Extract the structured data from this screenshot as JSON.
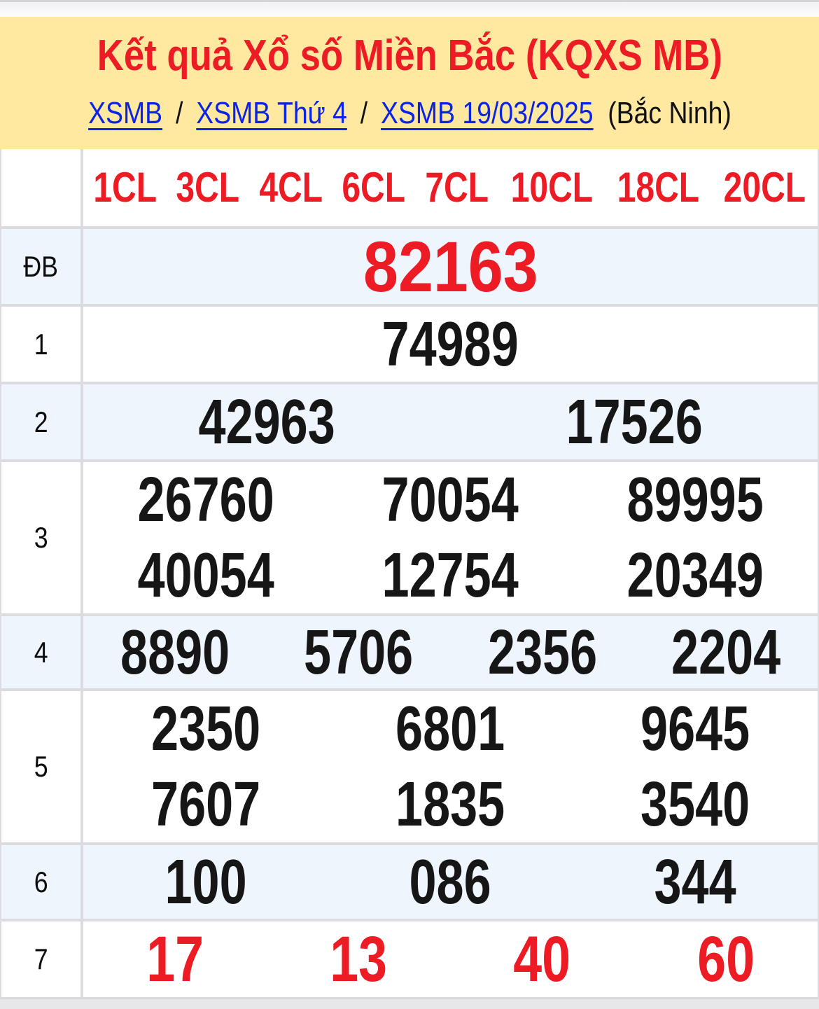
{
  "header": {
    "title": "Kết quả Xổ số Miền Bắc (KQXS MB)",
    "breadcrumb": {
      "separator": "/",
      "links": [
        {
          "label": "XSMB"
        },
        {
          "label": "XSMB Thứ 4"
        },
        {
          "label": "XSMB 19/03/2025"
        }
      ],
      "suffix": "(Bắc Ninh)"
    }
  },
  "results_table": {
    "column_headers": [
      "1CL",
      "3CL",
      "4CL",
      "6CL",
      "7CL",
      "10CL",
      "18CL",
      "20CL"
    ],
    "rows": [
      {
        "label": "ĐB",
        "lines": [
          [
            "82163"
          ]
        ]
      },
      {
        "label": "1",
        "lines": [
          [
            "74989"
          ]
        ]
      },
      {
        "label": "2",
        "lines": [
          [
            "42963",
            "17526"
          ]
        ]
      },
      {
        "label": "3",
        "lines": [
          [
            "26760",
            "70054",
            "89995"
          ],
          [
            "40054",
            "12754",
            "20349"
          ]
        ]
      },
      {
        "label": "4",
        "lines": [
          [
            "8890",
            "5706",
            "2356",
            "2204"
          ]
        ]
      },
      {
        "label": "5",
        "lines": [
          [
            "2350",
            "6801",
            "9645"
          ],
          [
            "7607",
            "1835",
            "3540"
          ]
        ]
      },
      {
        "label": "6",
        "lines": [
          [
            "100",
            "086",
            "344"
          ]
        ]
      },
      {
        "label": "7",
        "lines": [
          [
            "17",
            "13",
            "40",
            "60"
          ]
        ]
      }
    ]
  },
  "colors": {
    "accent_red": "#ed1c24",
    "link_blue": "#0a23e8",
    "banner_yellow": "#ffe9a1",
    "row_highlight_blue": "#eef5fd",
    "border_gray": "#dcdce0"
  }
}
